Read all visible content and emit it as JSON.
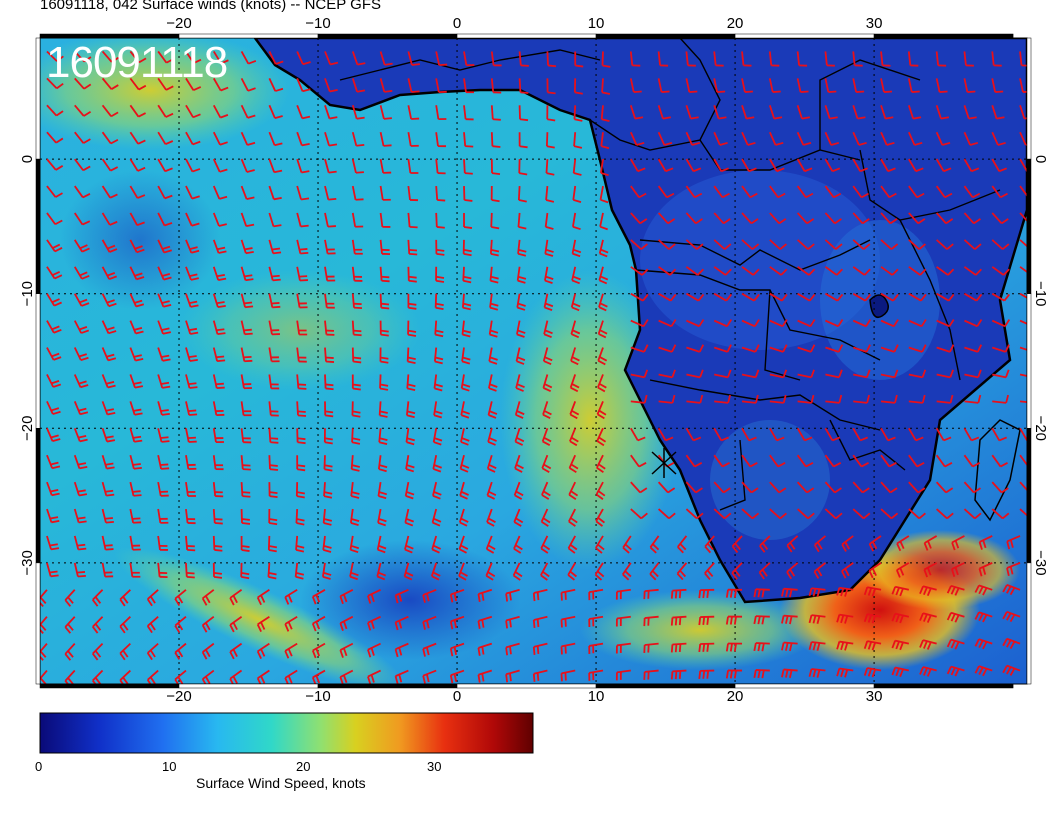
{
  "header": {
    "title": "16091118, 042 Surface winds (knots) -- NCEP GFS"
  },
  "map": {
    "stamp": "16091118",
    "lon_ticks_top": [
      "−20",
      "−10",
      "0",
      "10",
      "20",
      "30"
    ],
    "lon_ticks_bottom": [
      "−20",
      "−10",
      "0",
      "10",
      "20",
      "30"
    ],
    "lat_ticks": [
      "0",
      "−10",
      "−20",
      "−30"
    ],
    "lon_range": [
      -30,
      41
    ],
    "lat_range": [
      -39,
      9
    ],
    "barb_color": "#e8101a",
    "border_color": "#000000",
    "gridlines": "dotted"
  },
  "colorbar": {
    "label": "Surface Wind Speed, knots",
    "ticks": [
      "0",
      "10",
      "20",
      "30"
    ],
    "range": [
      0,
      36
    ],
    "colors": [
      "#0a0a78",
      "#1c3cd8",
      "#2a8cf0",
      "#2ad0d8",
      "#6ee0a0",
      "#c8d82a",
      "#f0a020",
      "#e02010",
      "#8c0808",
      "#500000"
    ]
  }
}
